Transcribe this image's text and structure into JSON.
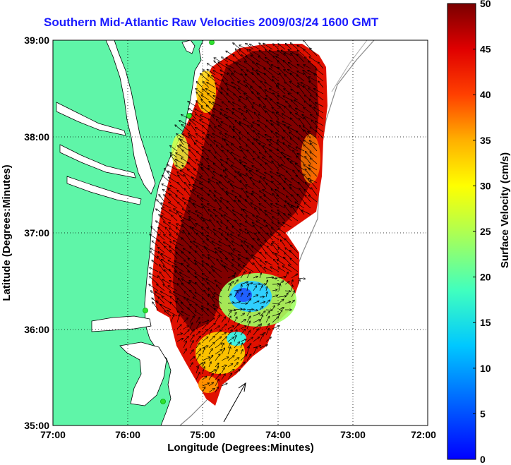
{
  "title": "Southern Mid-Atlantic Raw Velocities 2009/03/24 1600 GMT",
  "map": {
    "xlabel": "Longitude (Degrees:Minutes)",
    "ylabel": "Latitude (Degrees:Minutes)",
    "x_ticks": [
      "77:00",
      "76:00",
      "75:00",
      "74:00",
      "73:00",
      "72:00"
    ],
    "y_ticks": [
      "39:00",
      "38:00",
      "37:00",
      "36:00",
      "35:00"
    ],
    "lon_range": [
      -77,
      -72
    ],
    "lat_range": [
      35,
      39
    ],
    "grid": "dotted",
    "land_color": "#5ff5a8",
    "water_color": "#ffffff",
    "shelf_contour_color": "#888888"
  },
  "colorbar": {
    "label": "Surface Velocity (cm/s)",
    "ticks": [
      "0",
      "5",
      "10",
      "15",
      "20",
      "25",
      "30",
      "35",
      "40",
      "45",
      "50"
    ],
    "range": [
      0,
      50
    ],
    "colormap": "jet"
  },
  "reference_arrow": {
    "description": "scale vector",
    "lon": -74.45,
    "lat": 35.3
  },
  "stations": [
    {
      "name": "north station",
      "lon": -74.92,
      "lat": 39.0
    },
    {
      "name": "mid station",
      "lon": -75.15,
      "lat": 38.2
    },
    {
      "name": "south station 1",
      "lon": -75.7,
      "lat": 36.18
    },
    {
      "name": "south station 2",
      "lon": -75.5,
      "lat": 35.25
    }
  ]
}
